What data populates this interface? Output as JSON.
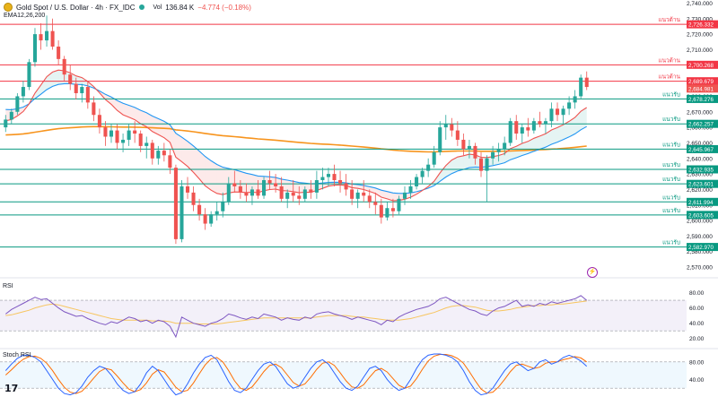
{
  "header": {
    "title": "Gold Spot / U.S. Dollar · 4h · FX_IDC",
    "volume_label": "Vol",
    "volume_value": "136.84 K",
    "change": "−4.774 (−0.18%)",
    "indicator": "EMA12,26,200"
  },
  "panes": {
    "rsi_label": "RSI",
    "stoch_label": "Stoch RSI"
  },
  "logo_text": "17",
  "colors": {
    "up": "#26a69a",
    "down": "#ef5350",
    "ema12": "#ef5350",
    "ema26": "#2196f3",
    "ema200": "#f7941d",
    "resistance": "#f23645",
    "support": "#089981",
    "rsi": "#7e57c2",
    "rsi_ma": "#f7c55f",
    "stoch_k": "#2962ff",
    "stoch_d": "#ff6d00"
  },
  "chart_data": [
    {
      "type": "candlestick",
      "title": "Gold Spot / U.S. Dollar · 4h · FX_IDC",
      "y_ticks": [
        "2,740.000",
        "2,730.000",
        "2,720.000",
        "2,710.000",
        "2,700.000",
        "2,690.000",
        "2,680.000",
        "2,670.000",
        "2,660.000",
        "2,650.000",
        "2,640.000",
        "2,630.000",
        "2,620.000",
        "2,610.000",
        "2,600.000",
        "2,590.000",
        "2,580.000",
        "2,570.000"
      ],
      "ylim": [
        2566,
        2742
      ],
      "grid": false,
      "candles": [
        [
          2660,
          2668,
          2657,
          2665
        ],
        [
          2665,
          2672,
          2662,
          2670
        ],
        [
          2670,
          2682,
          2668,
          2680
        ],
        [
          2680,
          2690,
          2676,
          2686
        ],
        [
          2686,
          2704,
          2684,
          2702
        ],
        [
          2702,
          2724,
          2699,
          2720
        ],
        [
          2720,
          2727,
          2710,
          2716
        ],
        [
          2716,
          2732,
          2712,
          2722
        ],
        [
          2722,
          2730,
          2710,
          2712
        ],
        [
          2712,
          2716,
          2700,
          2704
        ],
        [
          2704,
          2706,
          2690,
          2694
        ],
        [
          2694,
          2700,
          2684,
          2688
        ],
        [
          2688,
          2692,
          2678,
          2682
        ],
        [
          2682,
          2688,
          2676,
          2686
        ],
        [
          2686,
          2690,
          2672,
          2676
        ],
        [
          2676,
          2680,
          2664,
          2668
        ],
        [
          2668,
          2672,
          2656,
          2660
        ],
        [
          2660,
          2664,
          2648,
          2654
        ],
        [
          2654,
          2662,
          2650,
          2658
        ],
        [
          2658,
          2662,
          2646,
          2650
        ],
        [
          2650,
          2656,
          2644,
          2652
        ],
        [
          2652,
          2662,
          2648,
          2658
        ],
        [
          2658,
          2664,
          2650,
          2656
        ],
        [
          2656,
          2658,
          2644,
          2648
        ],
        [
          2648,
          2654,
          2640,
          2650
        ],
        [
          2650,
          2652,
          2636,
          2640
        ],
        [
          2640,
          2648,
          2636,
          2645
        ],
        [
          2645,
          2650,
          2638,
          2642
        ],
        [
          2642,
          2646,
          2630,
          2634
        ],
        [
          2634,
          2636,
          2585,
          2588
        ],
        [
          2588,
          2626,
          2586,
          2622
        ],
        [
          2622,
          2628,
          2614,
          2618
        ],
        [
          2618,
          2622,
          2606,
          2610
        ],
        [
          2610,
          2614,
          2600,
          2604
        ],
        [
          2604,
          2608,
          2594,
          2598
        ],
        [
          2598,
          2606,
          2596,
          2604
        ],
        [
          2604,
          2612,
          2600,
          2606
        ],
        [
          2606,
          2618,
          2602,
          2612
        ],
        [
          2612,
          2628,
          2610,
          2624
        ],
        [
          2624,
          2632,
          2618,
          2622
        ],
        [
          2622,
          2626,
          2614,
          2618
        ],
        [
          2618,
          2624,
          2612,
          2616
        ],
        [
          2616,
          2622,
          2610,
          2620
        ],
        [
          2620,
          2626,
          2614,
          2616
        ],
        [
          2616,
          2628,
          2614,
          2626
        ],
        [
          2626,
          2632,
          2620,
          2624
        ],
        [
          2624,
          2630,
          2618,
          2622
        ],
        [
          2622,
          2628,
          2612,
          2614
        ],
        [
          2614,
          2620,
          2608,
          2618
        ],
        [
          2618,
          2626,
          2612,
          2616
        ],
        [
          2616,
          2622,
          2610,
          2614
        ],
        [
          2614,
          2622,
          2612,
          2620
        ],
        [
          2620,
          2626,
          2614,
          2618
        ],
        [
          2618,
          2632,
          2614,
          2626
        ],
        [
          2626,
          2634,
          2620,
          2628
        ],
        [
          2628,
          2634,
          2622,
          2630
        ],
        [
          2630,
          2636,
          2622,
          2626
        ],
        [
          2626,
          2632,
          2618,
          2624
        ],
        [
          2624,
          2630,
          2616,
          2620
        ],
        [
          2620,
          2626,
          2610,
          2614
        ],
        [
          2614,
          2620,
          2608,
          2618
        ],
        [
          2618,
          2626,
          2612,
          2616
        ],
        [
          2616,
          2620,
          2608,
          2612
        ],
        [
          2612,
          2618,
          2604,
          2610
        ],
        [
          2610,
          2614,
          2598,
          2602
        ],
        [
          2602,
          2612,
          2600,
          2608
        ],
        [
          2608,
          2614,
          2602,
          2606
        ],
        [
          2606,
          2616,
          2604,
          2614
        ],
        [
          2614,
          2622,
          2610,
          2618
        ],
        [
          2618,
          2626,
          2614,
          2622
        ],
        [
          2622,
          2630,
          2620,
          2628
        ],
        [
          2628,
          2634,
          2624,
          2632
        ],
        [
          2632,
          2640,
          2628,
          2636
        ],
        [
          2636,
          2648,
          2634,
          2644
        ],
        [
          2644,
          2664,
          2642,
          2660
        ],
        [
          2660,
          2668,
          2652,
          2662
        ],
        [
          2662,
          2666,
          2654,
          2658
        ],
        [
          2658,
          2664,
          2648,
          2652
        ],
        [
          2652,
          2656,
          2642,
          2646
        ],
        [
          2646,
          2652,
          2640,
          2648
        ],
        [
          2648,
          2650,
          2636,
          2640
        ],
        [
          2640,
          2644,
          2628,
          2632
        ],
        [
          2632,
          2642,
          2612,
          2640
        ],
        [
          2640,
          2648,
          2636,
          2644
        ],
        [
          2644,
          2650,
          2638,
          2646
        ],
        [
          2646,
          2654,
          2642,
          2650
        ],
        [
          2650,
          2666,
          2648,
          2664
        ],
        [
          2664,
          2668,
          2652,
          2656
        ],
        [
          2656,
          2662,
          2650,
          2660
        ],
        [
          2660,
          2666,
          2654,
          2658
        ],
        [
          2658,
          2666,
          2656,
          2664
        ],
        [
          2664,
          2670,
          2660,
          2662
        ],
        [
          2662,
          2666,
          2656,
          2664
        ],
        [
          2664,
          2676,
          2660,
          2672
        ],
        [
          2672,
          2676,
          2664,
          2668
        ],
        [
          2668,
          2674,
          2662,
          2672
        ],
        [
          2672,
          2680,
          2668,
          2676
        ],
        [
          2676,
          2684,
          2672,
          2680
        ],
        [
          2680,
          2694,
          2678,
          2692
        ],
        [
          2692,
          2696,
          2684,
          2686
        ]
      ],
      "ema12_start": 2664,
      "ema26_start": 2672,
      "ema200_start": 2655,
      "levels": [
        {
          "value": 2726.332,
          "label": "2,726.332",
          "type": "resistance",
          "text": "แนวต้าน"
        },
        {
          "value": 2700.268,
          "label": "2,700.268",
          "type": "resistance",
          "text": "แนวต้าน"
        },
        {
          "value": 2689.679,
          "label": "2,689.679",
          "type": "resistance",
          "text": "แนวต้าน"
        },
        {
          "value": 2678.276,
          "label": "2,678.276",
          "type": "support",
          "text": "แนวรับ"
        },
        {
          "value": 2662.257,
          "label": "2,662.257",
          "type": "support",
          "text": "แนวรับ"
        },
        {
          "value": 2645.967,
          "label": "2,645.967",
          "type": "support",
          "text": "แนวรับ"
        },
        {
          "value": 2632.935,
          "label": "2,632.935",
          "type": "support",
          "text": "แนวรับ"
        },
        {
          "value": 2623.601,
          "label": "2,623.601",
          "type": "support",
          "text": "แนวรับ"
        },
        {
          "value": 2611.994,
          "label": "2,611.994",
          "type": "support",
          "text": "แนวรับ"
        },
        {
          "value": 2603.605,
          "label": "2,603.605",
          "type": "support",
          "text": "แนวรับ"
        },
        {
          "value": 2582.97,
          "label": "2,582.970",
          "type": "support",
          "text": "แนวรับ"
        }
      ],
      "last_price": {
        "value": 2684.981,
        "label": "2,684.981"
      }
    },
    {
      "type": "line",
      "title": "RSI",
      "y_ticks": [
        "80.00",
        "60.00",
        "40.00",
        "20.00"
      ],
      "ylim": [
        15,
        90
      ],
      "band": [
        30,
        70
      ],
      "rsi": [
        52,
        58,
        62,
        66,
        70,
        74,
        71,
        72,
        66,
        60,
        55,
        52,
        49,
        50,
        46,
        43,
        40,
        38,
        42,
        40,
        44,
        48,
        46,
        42,
        44,
        40,
        44,
        42,
        36,
        22,
        48,
        44,
        40,
        38,
        36,
        40,
        42,
        46,
        52,
        50,
        47,
        45,
        48,
        46,
        52,
        50,
        48,
        44,
        47,
        45,
        44,
        48,
        46,
        52,
        54,
        55,
        52,
        50,
        48,
        45,
        48,
        46,
        44,
        42,
        38,
        44,
        42,
        48,
        52,
        55,
        58,
        60,
        62,
        66,
        72,
        74,
        70,
        66,
        62,
        58,
        56,
        52,
        50,
        56,
        60,
        62,
        66,
        70,
        62,
        64,
        62,
        66,
        64,
        68,
        66,
        68,
        70,
        72,
        76,
        70
      ],
      "rsi_ma": [
        50,
        51,
        53,
        55,
        57,
        60,
        62,
        64,
        65,
        64,
        62,
        60,
        58,
        56,
        54,
        52,
        50,
        48,
        46,
        45,
        44,
        44,
        44,
        44,
        44,
        43,
        43,
        43,
        42,
        40,
        40,
        40,
        40,
        39,
        39,
        39,
        39,
        40,
        41,
        42,
        43,
        44,
        45,
        46,
        47,
        47,
        47,
        47,
        47,
        47,
        47,
        47,
        47,
        48,
        49,
        50,
        50,
        50,
        50,
        49,
        48,
        48,
        47,
        46,
        45,
        44,
        44,
        44,
        45,
        46,
        48,
        50,
        52,
        54,
        57,
        60,
        62,
        63,
        63,
        62,
        61,
        59,
        57,
        56,
        56,
        57,
        58,
        60,
        61,
        62,
        63,
        63,
        64,
        64,
        65,
        65,
        66,
        67,
        68,
        69
      ]
    },
    {
      "type": "line",
      "title": "Stoch RSI",
      "y_ticks": [
        "80.00",
        "40.00"
      ],
      "ylim": [
        0,
        100
      ],
      "band": [
        20,
        80
      ],
      "k": [
        60,
        75,
        88,
        95,
        95,
        90,
        80,
        60,
        40,
        20,
        8,
        5,
        10,
        25,
        45,
        60,
        70,
        65,
        50,
        30,
        15,
        8,
        12,
        30,
        55,
        70,
        60,
        40,
        20,
        5,
        10,
        30,
        55,
        75,
        90,
        95,
        85,
        60,
        35,
        15,
        10,
        20,
        40,
        60,
        75,
        80,
        70,
        50,
        30,
        20,
        25,
        45,
        65,
        80,
        85,
        75,
        55,
        35,
        20,
        15,
        25,
        45,
        65,
        70,
        60,
        40,
        25,
        15,
        20,
        40,
        65,
        85,
        95,
        98,
        98,
        95,
        90,
        80,
        60,
        35,
        15,
        5,
        8,
        20,
        40,
        60,
        75,
        80,
        70,
        60,
        65,
        80,
        85,
        75,
        80,
        90,
        95,
        90,
        82,
        70
      ],
      "d": [
        50,
        62,
        75,
        86,
        92,
        93,
        88,
        77,
        60,
        40,
        22,
        11,
        8,
        13,
        27,
        43,
        58,
        65,
        62,
        48,
        32,
        18,
        12,
        17,
        32,
        52,
        62,
        57,
        40,
        22,
        12,
        15,
        32,
        53,
        73,
        87,
        90,
        80,
        60,
        37,
        20,
        15,
        23,
        40,
        58,
        72,
        75,
        67,
        50,
        33,
        25,
        30,
        45,
        63,
        77,
        80,
        72,
        55,
        37,
        23,
        20,
        28,
        45,
        60,
        65,
        57,
        42,
        27,
        20,
        25,
        42,
        63,
        82,
        93,
        97,
        97,
        94,
        88,
        77,
        58,
        37,
        18,
        9,
        11,
        23,
        40,
        58,
        72,
        75,
        70,
        65,
        68,
        77,
        80,
        80,
        85,
        88,
        92,
        89,
        80
      ]
    }
  ]
}
